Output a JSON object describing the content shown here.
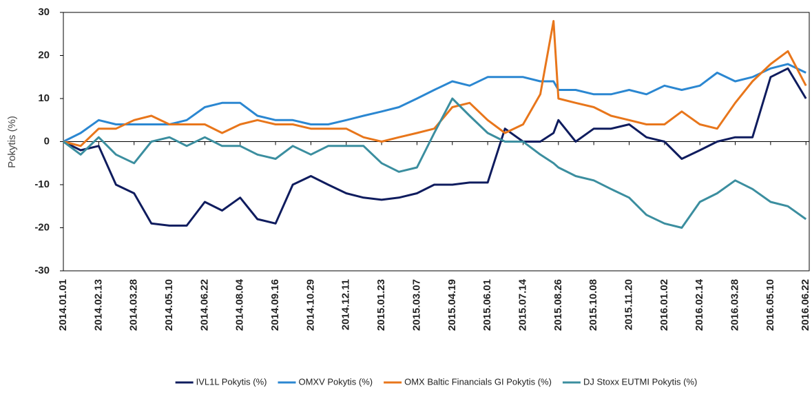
{
  "chart_data": {
    "type": "line",
    "ylabel": "Pokytis (%)",
    "x": [
      "2014.01.01",
      "2014.01.22",
      "2014.02.13",
      "2014.03.06",
      "2014.03.28",
      "2014.04.18",
      "2014.05.10",
      "2014.05.31",
      "2014.06.22",
      "2014.07.13",
      "2014.08.04",
      "2014.08.25",
      "2014.09.16",
      "2014.10.07",
      "2014.10.29",
      "2014.11.19",
      "2014.12.11",
      "2015.01.01",
      "2015.01.23",
      "2015.02.13",
      "2015.03.07",
      "2015.03.28",
      "2015.04.19",
      "2015.05.10",
      "2015.06.01",
      "2015.06.22",
      "2015.07.14",
      "2015.08.04",
      "2015.08.20",
      "2015.08.26",
      "2015.09.16",
      "2015.10.08",
      "2015.10.29",
      "2015.11.20",
      "2015.12.11",
      "2016.01.02",
      "2016.01.23",
      "2016.02.14",
      "2016.03.06",
      "2016.03.28",
      "2016.04.18",
      "2016.05.10",
      "2016.05.31",
      "2016.06.22"
    ],
    "series": [
      {
        "name": "IVL1L Pokytis (%)",
        "color": "#0f1c5e",
        "values": [
          0,
          -2,
          -1,
          -10,
          -12,
          -19,
          -19.5,
          -19.5,
          -14,
          -16,
          -13,
          -18,
          -19,
          -10,
          -8,
          -10,
          -12,
          -13,
          -13.5,
          -13,
          -12,
          -10,
          -10,
          -9.5,
          -9.5,
          3,
          0,
          0,
          2,
          5,
          0,
          3,
          3,
          4,
          1,
          0,
          -4,
          -2,
          0,
          1,
          1,
          15,
          17,
          10
        ]
      },
      {
        "name": "OMXV Pokytis (%)",
        "color": "#2b87d1",
        "values": [
          0,
          2,
          5,
          4,
          4,
          4,
          4,
          5,
          8,
          9,
          9,
          6,
          5,
          5,
          4,
          4,
          5,
          6,
          7,
          8,
          10,
          12,
          14,
          13,
          15,
          15,
          15,
          14,
          14,
          12,
          12,
          11,
          11,
          12,
          11,
          13,
          12,
          13,
          16,
          14,
          15,
          17,
          18,
          16
        ]
      },
      {
        "name": "OMX Baltic Financials GI Pokytis (%)",
        "color": "#e8761b",
        "values": [
          0,
          -1,
          3,
          3,
          5,
          6,
          4,
          4,
          4,
          2,
          4,
          5,
          4,
          4,
          3,
          3,
          3,
          1,
          0,
          1,
          2,
          3,
          8,
          9,
          5,
          2,
          4,
          11,
          28,
          10,
          9,
          8,
          6,
          5,
          4,
          4,
          7,
          4,
          3,
          9,
          14,
          18,
          21,
          13
        ]
      },
      {
        "name": "DJ Stoxx EUTMI Pokytis (%)",
        "color": "#3b8e9f",
        "values": [
          0,
          -3,
          1,
          -3,
          -5,
          0,
          1,
          -1,
          1,
          -1,
          -1,
          -3,
          -4,
          -1,
          -3,
          -1,
          -1,
          -1,
          -5,
          -7,
          -6,
          2,
          10,
          6,
          2,
          0,
          0,
          -3,
          -5,
          -6,
          -8,
          -9,
          -11,
          -13,
          -17,
          -19,
          -20,
          -14,
          -12,
          -9,
          -11,
          -14,
          -15,
          -18
        ]
      }
    ],
    "xlim": [
      "2014.01.01",
      "2016.06.26"
    ],
    "xticks": [
      "2014.01.01",
      "2014.02.13",
      "2014.03.28",
      "2014.05.10",
      "2014.06.22",
      "2014.08.04",
      "2014.09.16",
      "2014.10.29",
      "2014.12.11",
      "2015.01.23",
      "2015.03.07",
      "2015.04.19",
      "2015.06.01",
      "2015.07.14",
      "2015.08.26",
      "2015.10.08",
      "2015.11.20",
      "2016.01.02",
      "2016.02.14",
      "2016.03.28",
      "2016.05.10",
      "2016.06.22"
    ],
    "ylim": [
      -30,
      30
    ],
    "yticks": [
      -30,
      -20,
      -10,
      0,
      10,
      20,
      30
    ],
    "legend": "bottom"
  }
}
